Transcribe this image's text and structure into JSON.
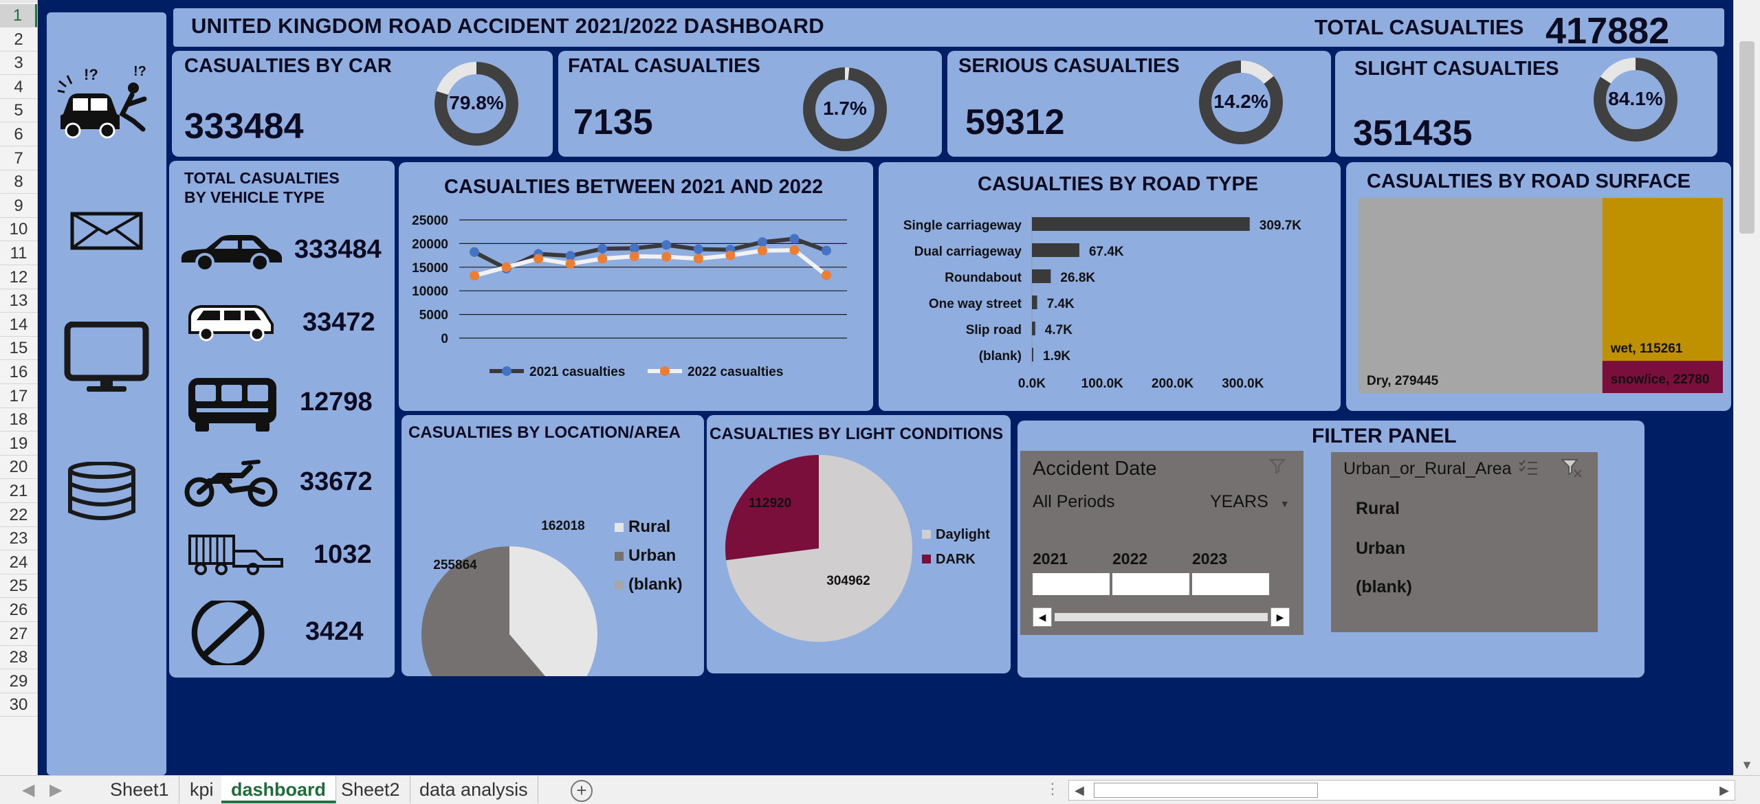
{
  "dashboard": {
    "title": "UNITED KINGDOM ROAD ACCIDENT 2021/2022 DASHBOARD",
    "total_label": "TOTAL CASUALTIES",
    "total_value": "417882"
  },
  "sidebar": {
    "icons": [
      "car-crash-icon",
      "mail-icon",
      "monitor-icon",
      "database-icon"
    ]
  },
  "kpis": [
    {
      "label": "CASUALTIES BY CAR",
      "value": "333484",
      "pct": "79.8%",
      "fraction": 0.798
    },
    {
      "label": "FATAL CASUALTIES",
      "value": "7135",
      "pct": "1.7%",
      "fraction": 0.017
    },
    {
      "label": "SERIOUS CASUALTIES",
      "value": "59312",
      "pct": "14.2%",
      "fraction": 0.142
    },
    {
      "label": "SLIGHT CASUALTIES",
      "value": "351435",
      "pct": "84.1%",
      "fraction": 0.841
    }
  ],
  "vehicles": {
    "title_line1": "TOTAL CASUALTIES",
    "title_line2": "BY VEHICLE TYPE",
    "items": [
      {
        "icon": "car-icon",
        "value": "333484"
      },
      {
        "icon": "van-icon",
        "value": "33472"
      },
      {
        "icon": "bus-icon",
        "value": "12798"
      },
      {
        "icon": "motorcycle-icon",
        "value": "33672"
      },
      {
        "icon": "agricultural-vehicle-icon",
        "value": "1032"
      },
      {
        "icon": "other-vehicle-icon",
        "value": "3424"
      }
    ]
  },
  "chart_data": [
    {
      "type": "line",
      "title": "CASUALTIES BETWEEN 2021 AND 2022",
      "y_ticks": [
        "25000",
        "20000",
        "15000",
        "10000",
        "5000",
        "0"
      ],
      "ylim": [
        0,
        25000
      ],
      "grid": true,
      "legend": "bottom",
      "series": [
        {
          "name": "2021 casualties",
          "color": "#4472c4",
          "values": [
            18200,
            14700,
            17800,
            17400,
            18900,
            19000,
            19700,
            18800,
            18700,
            20300,
            21000,
            18500
          ]
        },
        {
          "name": "2022 casualties",
          "color": "#ed7d31",
          "values": [
            13200,
            15000,
            16800,
            15700,
            16800,
            17300,
            17200,
            16800,
            17500,
            18500,
            18600,
            13300
          ]
        }
      ]
    },
    {
      "type": "bar",
      "orientation": "horizontal",
      "title": "CASUALTIES BY ROAD TYPE",
      "categories": [
        "Single carriageway",
        "Dual carriageway",
        "Roundabout",
        "One way street",
        "Slip road",
        "(blank)"
      ],
      "values": [
        309700,
        67400,
        26800,
        7400,
        4700,
        1900
      ],
      "data_labels": [
        "309.7K",
        "67.4K",
        "26.8K",
        "7.4K",
        "4.7K",
        "1.9K"
      ],
      "x_ticks": [
        "0.0K",
        "100.0K",
        "200.0K",
        "300.0K"
      ],
      "xlim": [
        0,
        350000
      ],
      "bar_color": "#3a3a3a"
    },
    {
      "type": "treemap",
      "title": "CASUALTIES BY ROAD SURFACE",
      "items": [
        {
          "label": "Dry, 279445",
          "value": 279445,
          "color": "#a6a6a6"
        },
        {
          "label": "wet, 115261",
          "value": 115261,
          "color": "#bf9000"
        },
        {
          "label": "snow/ice, 22780",
          "value": 22780,
          "color": "#7b0f3c"
        }
      ]
    },
    {
      "type": "pie",
      "title": "CASUALTIES BY LOCATION/AREA",
      "slices": [
        {
          "name": "Rural",
          "value": 162018,
          "label": "162018",
          "color": "#e7e6e6"
        },
        {
          "name": "Urban",
          "value": 255864,
          "label": "255864",
          "color": "#767171"
        },
        {
          "name": "(blank)",
          "value": 0,
          "label": "",
          "color": "#a6a6a6"
        }
      ],
      "legend": "right"
    },
    {
      "type": "pie",
      "title": "CASUALTIES BY LIGHT CONDITIONS",
      "slices": [
        {
          "name": "Daylight",
          "value": 304962,
          "label": "304962",
          "color": "#d0cece"
        },
        {
          "name": "DARK",
          "value": 112920,
          "label": "112920",
          "color": "#7b0f3c"
        }
      ],
      "legend": "right"
    }
  ],
  "filter_panel": {
    "title": "FILTER PANEL",
    "date_slicer": {
      "title": "Accident Date",
      "period_label": "All Periods",
      "level": "YEARS",
      "years": [
        "2021",
        "2022",
        "2023"
      ]
    },
    "area_slicer": {
      "title": "Urban_or_Rural_Area",
      "items": [
        "Rural",
        "Urban",
        "(blank)"
      ]
    }
  },
  "excel": {
    "rows": [
      "1",
      "2",
      "3",
      "4",
      "5",
      "6",
      "7",
      "8",
      "9",
      "10",
      "11",
      "12",
      "13",
      "14",
      "15",
      "16",
      "17",
      "18",
      "19",
      "20",
      "21",
      "22",
      "23",
      "24",
      "25",
      "26",
      "27",
      "28",
      "29",
      "30"
    ],
    "sheets": [
      "Sheet1",
      "kpi",
      "dashboard",
      "Sheet2",
      "data analysis"
    ],
    "active_sheet": "dashboard"
  }
}
